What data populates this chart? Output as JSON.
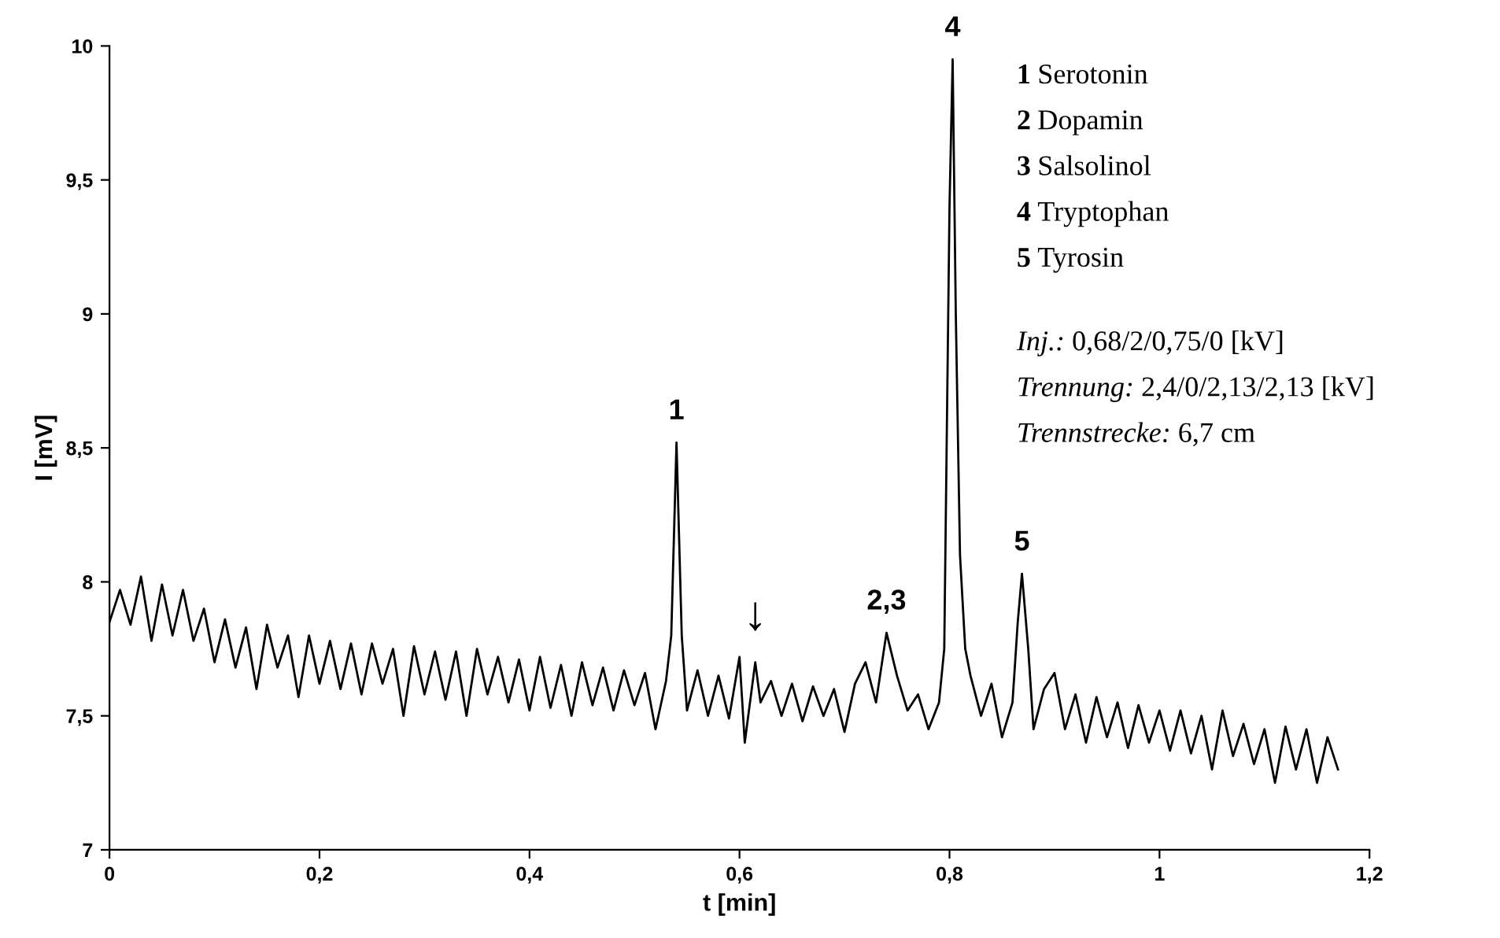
{
  "chart_data": {
    "type": "line",
    "xlabel": "t [min]",
    "ylabel": "I [mV]",
    "xlim": [
      0,
      1.2
    ],
    "ylim": [
      7,
      10
    ],
    "xticks": [
      0,
      {
        "value": 0.2,
        "label": "0,2"
      },
      {
        "value": 0.4,
        "label": "0,4"
      },
      {
        "value": 0.6,
        "label": "0,6"
      },
      {
        "value": 0.8,
        "label": "0,8"
      },
      1,
      {
        "value": 1.2,
        "label": "1,2"
      }
    ],
    "yticks": [
      7,
      {
        "value": 7.5,
        "label": "7,5"
      },
      8,
      {
        "value": 8.5,
        "label": "8,5"
      },
      9,
      {
        "value": 9.5,
        "label": "9,5"
      },
      10
    ],
    "grid": false,
    "legend": false,
    "line_style": "solid",
    "marker": "none",
    "series": [
      {
        "color": "#000000",
        "x": [
          0.0,
          0.01,
          0.02,
          0.03,
          0.04,
          0.05,
          0.06,
          0.07,
          0.08,
          0.09,
          0.1,
          0.11,
          0.12,
          0.13,
          0.14,
          0.15,
          0.16,
          0.17,
          0.18,
          0.19,
          0.2,
          0.21,
          0.22,
          0.23,
          0.24,
          0.25,
          0.26,
          0.27,
          0.28,
          0.29,
          0.3,
          0.31,
          0.32,
          0.33,
          0.34,
          0.35,
          0.36,
          0.37,
          0.38,
          0.39,
          0.4,
          0.41,
          0.42,
          0.43,
          0.44,
          0.45,
          0.46,
          0.47,
          0.48,
          0.49,
          0.5,
          0.51,
          0.52,
          0.53,
          0.535,
          0.54,
          0.545,
          0.55,
          0.56,
          0.57,
          0.58,
          0.59,
          0.6,
          0.605,
          0.615,
          0.62,
          0.63,
          0.64,
          0.65,
          0.66,
          0.67,
          0.68,
          0.69,
          0.7,
          0.71,
          0.72,
          0.73,
          0.74,
          0.75,
          0.76,
          0.77,
          0.78,
          0.79,
          0.795,
          0.8,
          0.803,
          0.806,
          0.81,
          0.815,
          0.82,
          0.83,
          0.84,
          0.85,
          0.86,
          0.865,
          0.869,
          0.875,
          0.88,
          0.89,
          0.9,
          0.91,
          0.92,
          0.93,
          0.94,
          0.95,
          0.96,
          0.97,
          0.98,
          0.99,
          1.0,
          1.01,
          1.02,
          1.03,
          1.04,
          1.05,
          1.06,
          1.07,
          1.08,
          1.09,
          1.1,
          1.11,
          1.12,
          1.13,
          1.14,
          1.15,
          1.16,
          1.17
        ],
        "values": [
          7.85,
          7.97,
          7.84,
          8.02,
          7.78,
          7.99,
          7.8,
          7.97,
          7.78,
          7.9,
          7.7,
          7.86,
          7.68,
          7.83,
          7.6,
          7.84,
          7.68,
          7.8,
          7.57,
          7.8,
          7.62,
          7.78,
          7.6,
          7.77,
          7.58,
          7.77,
          7.62,
          7.75,
          7.5,
          7.76,
          7.58,
          7.74,
          7.56,
          7.74,
          7.5,
          7.75,
          7.58,
          7.72,
          7.55,
          7.71,
          7.52,
          7.72,
          7.53,
          7.69,
          7.5,
          7.7,
          7.54,
          7.68,
          7.52,
          7.67,
          7.54,
          7.66,
          7.45,
          7.63,
          7.8,
          8.52,
          7.8,
          7.52,
          7.67,
          7.5,
          7.65,
          7.49,
          7.72,
          7.4,
          7.7,
          7.55,
          7.63,
          7.5,
          7.62,
          7.48,
          7.61,
          7.5,
          7.6,
          7.44,
          7.62,
          7.7,
          7.55,
          7.81,
          7.65,
          7.52,
          7.58,
          7.45,
          7.55,
          7.75,
          9.4,
          9.95,
          9.0,
          8.1,
          7.75,
          7.65,
          7.5,
          7.62,
          7.42,
          7.55,
          7.85,
          8.03,
          7.75,
          7.45,
          7.6,
          7.66,
          7.45,
          7.58,
          7.4,
          7.57,
          7.42,
          7.55,
          7.38,
          7.54,
          7.4,
          7.52,
          7.37,
          7.52,
          7.36,
          7.5,
          7.3,
          7.52,
          7.35,
          7.47,
          7.32,
          7.45,
          7.25,
          7.46,
          7.3,
          7.45,
          7.25,
          7.42,
          7.3
        ]
      }
    ],
    "annotations": [
      "1 Serotonin",
      "2 Dopamin",
      "3 Salsolinol",
      "4 Tryptophan",
      "5 Tyrosin",
      "Inj.: 0,68/2/0,75/0 [kV]",
      "Trennung: 2,4/0/2,13/2,13 [kV]",
      "Trennstrecke: 6,7 cm",
      {
        "text": "1",
        "x": 0.54,
        "y": 8.52
      },
      {
        "text": "2,3",
        "x": 0.74,
        "y": 7.81
      },
      {
        "text": "4",
        "x": 0.803,
        "y": 9.95
      },
      {
        "text": "5",
        "x": 0.869,
        "y": 8.03
      },
      {
        "text": "↓",
        "x": 0.615,
        "y": 7.72
      }
    ]
  }
}
